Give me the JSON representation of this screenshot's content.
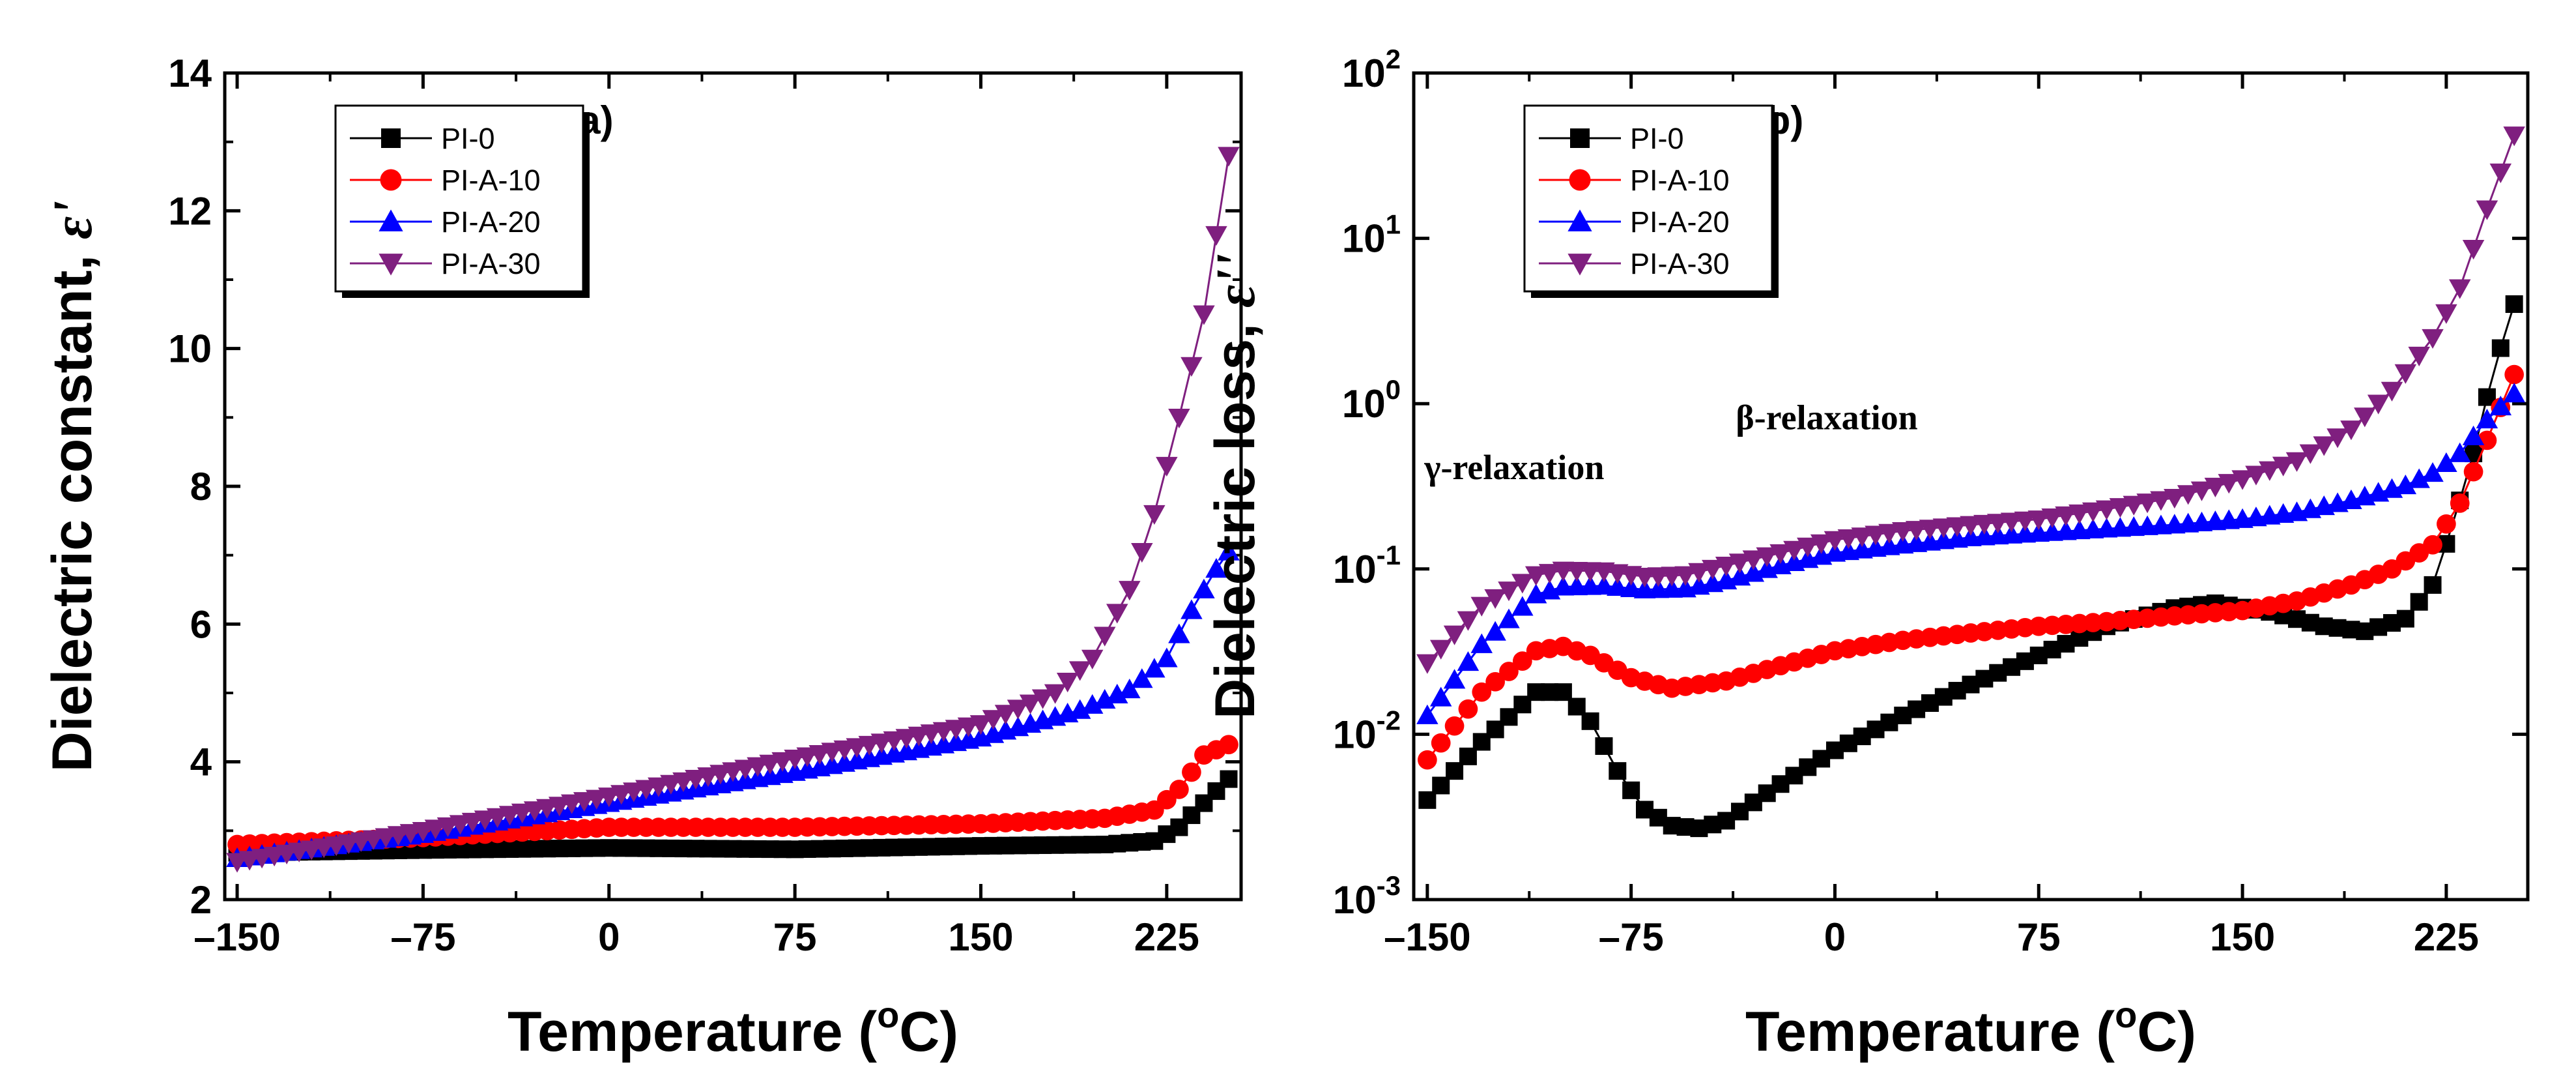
{
  "chart_data": [
    {
      "type": "line",
      "title": "",
      "panel_label": "(a)",
      "xlabel": "Temperature (°C)",
      "xlabel_parts": {
        "pre": "Temperature (",
        "sup": "o",
        "post": "C)"
      },
      "ylabel": "Dielectric constant, ε'",
      "ylabel_parts": {
        "main": "Dielectric constant, ",
        "symbol": "ε'"
      },
      "xlim": [
        -155,
        255
      ],
      "ylim": [
        2,
        14
      ],
      "yscale": "linear",
      "x_ticks": [
        -150,
        -75,
        0,
        75,
        150,
        225
      ],
      "x_tick_labels": [
        "–150",
        "–75",
        "0",
        "75",
        "150",
        "225"
      ],
      "y_ticks": [
        2,
        4,
        6,
        8,
        10,
        12,
        14
      ],
      "y_tick_labels": [
        "2",
        "4",
        "6",
        "8",
        "10",
        "12",
        "14"
      ],
      "legend_position": "top-left",
      "series": [
        {
          "name": "PI-0",
          "color": "#000000",
          "marker": "square",
          "points": [
            [
              -150,
              2.68
            ],
            [
              -75,
              2.72
            ],
            [
              0,
              2.75
            ],
            [
              75,
              2.73
            ],
            [
              150,
              2.78
            ],
            [
              200,
              2.8
            ],
            [
              220,
              2.85
            ],
            [
              230,
              3.05
            ],
            [
              240,
              3.4
            ],
            [
              250,
              3.75
            ]
          ]
        },
        {
          "name": "PI-A-10",
          "color": "#ff0000",
          "marker": "circle",
          "points": [
            [
              -150,
              2.8
            ],
            [
              -75,
              2.9
            ],
            [
              0,
              3.05
            ],
            [
              75,
              3.05
            ],
            [
              150,
              3.1
            ],
            [
              200,
              3.18
            ],
            [
              220,
              3.3
            ],
            [
              230,
              3.6
            ],
            [
              240,
              4.1
            ],
            [
              250,
              4.25
            ]
          ]
        },
        {
          "name": "PI-A-20",
          "color": "#0000ff",
          "marker": "triangle-up",
          "points": [
            [
              -150,
              2.6
            ],
            [
              -75,
              2.95
            ],
            [
              0,
              3.4
            ],
            [
              75,
              3.85
            ],
            [
              150,
              4.35
            ],
            [
              190,
              4.75
            ],
            [
              210,
              5.05
            ],
            [
              225,
              5.5
            ],
            [
              235,
              6.2
            ],
            [
              245,
              6.8
            ],
            [
              250,
              7.05
            ]
          ]
        },
        {
          "name": "PI-A-30",
          "color": "#7f1f7f",
          "marker": "triangle-down",
          "points": [
            [
              -150,
              2.55
            ],
            [
              -75,
              3.0
            ],
            [
              0,
              3.5
            ],
            [
              75,
              4.05
            ],
            [
              150,
              4.55
            ],
            [
              180,
              5.0
            ],
            [
              195,
              5.5
            ],
            [
              210,
              6.5
            ],
            [
              220,
              7.6
            ],
            [
              230,
              9.0
            ],
            [
              240,
              10.5
            ],
            [
              250,
              12.8
            ]
          ]
        }
      ]
    },
    {
      "type": "line",
      "title": "",
      "panel_label": "(b)",
      "xlabel": "Temperature (°C)",
      "xlabel_parts": {
        "pre": "Temperature (",
        "sup": "o",
        "post": "C)"
      },
      "ylabel": "Dielectric loss, ε''",
      "ylabel_parts": {
        "main": "Dielectric loss, ",
        "symbol": "ε''"
      },
      "xlim": [
        -155,
        255
      ],
      "ylim": [
        0.001,
        100
      ],
      "yscale": "log",
      "x_ticks": [
        -150,
        -75,
        0,
        75,
        150,
        225
      ],
      "x_tick_labels": [
        "–150",
        "–75",
        "0",
        "75",
        "150",
        "225"
      ],
      "y_ticks": [
        0.001,
        0.01,
        0.1,
        1,
        10,
        100
      ],
      "y_tick_labels": [
        {
          "base": "10",
          "exp": "-3"
        },
        {
          "base": "10",
          "exp": "-2"
        },
        {
          "base": "10",
          "exp": "-1"
        },
        {
          "base": "10",
          "exp": "0"
        },
        {
          "base": "10",
          "exp": "1"
        },
        {
          "base": "10",
          "exp": "2"
        }
      ],
      "legend_position": "top-left",
      "annotations": [
        {
          "text": "γ-relaxation",
          "x": -118,
          "y": 0.35
        },
        {
          "text": "β-relaxation",
          "x": -3,
          "y": 0.7
        }
      ],
      "series": [
        {
          "name": "PI-0",
          "color": "#000000",
          "marker": "square",
          "points": [
            [
              -150,
              0.004
            ],
            [
              -130,
              0.009
            ],
            [
              -110,
              0.018
            ],
            [
              -100,
              0.018
            ],
            [
              -90,
              0.012
            ],
            [
              -80,
              0.006
            ],
            [
              -70,
              0.0035
            ],
            [
              -60,
              0.0028
            ],
            [
              -50,
              0.0027
            ],
            [
              -40,
              0.003
            ],
            [
              -20,
              0.005
            ],
            [
              0,
              0.008
            ],
            [
              25,
              0.013
            ],
            [
              50,
              0.02
            ],
            [
              75,
              0.03
            ],
            [
              100,
              0.045
            ],
            [
              125,
              0.058
            ],
            [
              140,
              0.062
            ],
            [
              160,
              0.055
            ],
            [
              180,
              0.045
            ],
            [
              195,
              0.042
            ],
            [
              210,
              0.05
            ],
            [
              220,
              0.08
            ],
            [
              228,
              0.2
            ],
            [
              235,
              0.5
            ],
            [
              242,
              1.5
            ],
            [
              250,
              4.0
            ]
          ]
        },
        {
          "name": "PI-A-10",
          "color": "#ff0000",
          "marker": "circle",
          "points": [
            [
              -150,
              0.007
            ],
            [
              -130,
              0.018
            ],
            [
              -110,
              0.032
            ],
            [
              -100,
              0.034
            ],
            [
              -90,
              0.03
            ],
            [
              -75,
              0.022
            ],
            [
              -60,
              0.019
            ],
            [
              -40,
              0.021
            ],
            [
              -20,
              0.026
            ],
            [
              0,
              0.032
            ],
            [
              25,
              0.037
            ],
            [
              50,
              0.041
            ],
            [
              75,
              0.045
            ],
            [
              100,
              0.048
            ],
            [
              125,
              0.052
            ],
            [
              150,
              0.056
            ],
            [
              170,
              0.064
            ],
            [
              190,
              0.08
            ],
            [
              205,
              0.1
            ],
            [
              220,
              0.14
            ],
            [
              230,
              0.25
            ],
            [
              240,
              0.6
            ],
            [
              250,
              1.5
            ]
          ]
        },
        {
          "name": "PI-A-20",
          "color": "#0000ff",
          "marker": "triangle-up",
          "points": [
            [
              -150,
              0.013
            ],
            [
              -130,
              0.035
            ],
            [
              -110,
              0.07
            ],
            [
              -100,
              0.078
            ],
            [
              -85,
              0.079
            ],
            [
              -70,
              0.075
            ],
            [
              -55,
              0.076
            ],
            [
              -40,
              0.085
            ],
            [
              -20,
              0.105
            ],
            [
              0,
              0.125
            ],
            [
              25,
              0.14
            ],
            [
              50,
              0.155
            ],
            [
              75,
              0.165
            ],
            [
              100,
              0.175
            ],
            [
              125,
              0.185
            ],
            [
              150,
              0.2
            ],
            [
              170,
              0.22
            ],
            [
              190,
              0.26
            ],
            [
              210,
              0.32
            ],
            [
              220,
              0.38
            ],
            [
              230,
              0.5
            ],
            [
              240,
              0.8
            ],
            [
              250,
              1.15
            ]
          ]
        },
        {
          "name": "PI-A-30",
          "color": "#7f1f7f",
          "marker": "triangle-down",
          "points": [
            [
              -150,
              0.027
            ],
            [
              -130,
              0.06
            ],
            [
              -110,
              0.092
            ],
            [
              -100,
              0.098
            ],
            [
              -85,
              0.097
            ],
            [
              -70,
              0.09
            ],
            [
              -55,
              0.092
            ],
            [
              -40,
              0.105
            ],
            [
              -20,
              0.125
            ],
            [
              0,
              0.15
            ],
            [
              25,
              0.17
            ],
            [
              50,
              0.185
            ],
            [
              75,
              0.2
            ],
            [
              100,
              0.23
            ],
            [
              125,
              0.27
            ],
            [
              150,
              0.35
            ],
            [
              170,
              0.45
            ],
            [
              190,
              0.7
            ],
            [
              205,
              1.2
            ],
            [
              220,
              2.5
            ],
            [
              230,
              5.0
            ],
            [
              240,
              15
            ],
            [
              250,
              42
            ]
          ]
        }
      ]
    }
  ]
}
